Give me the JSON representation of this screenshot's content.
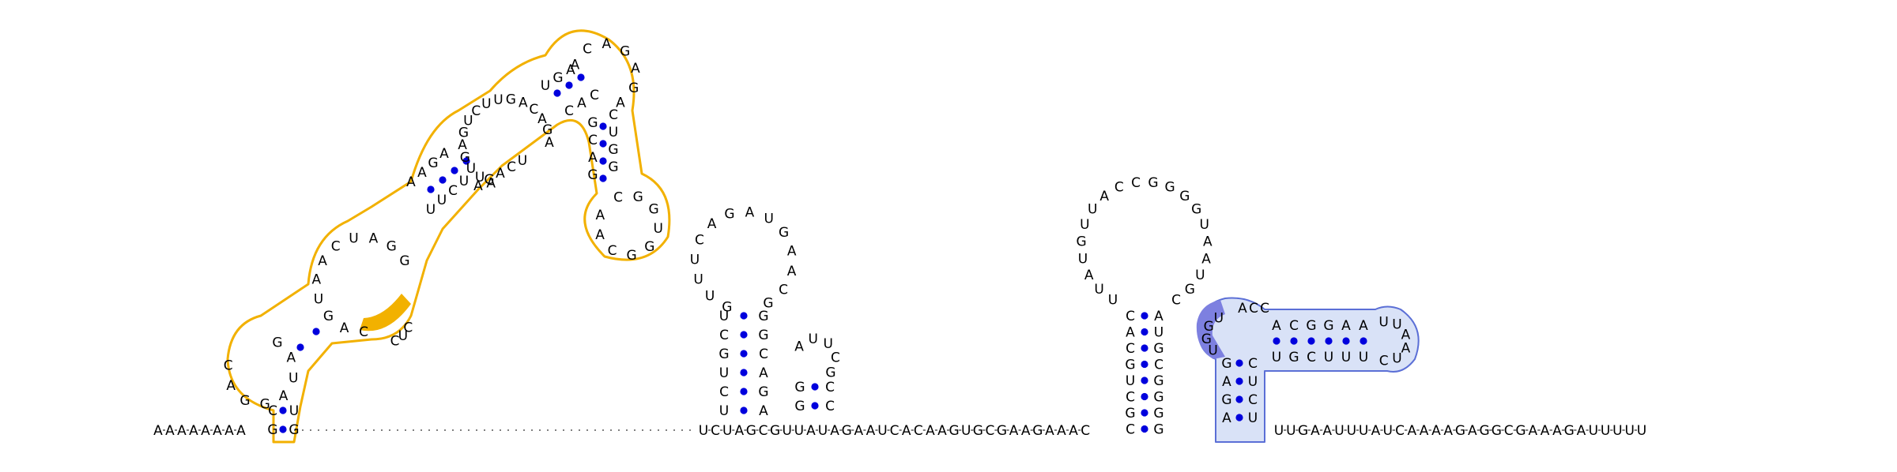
{
  "diagram": {
    "type": "rna-secondary-structure",
    "backbone_5prime_tail": "AAAAAAAA",
    "backbone_middle": "UCUAGCGUUAUAGAAUCACAAGUGCGAAGAAAC",
    "backbone_3prime_tail": "UUGAAUUUAUCAAAAGAGGCGAAAGAUUUUU",
    "highlight_colors": {
      "orange_outline": "#f2b100",
      "orange_fill": "#f2b100",
      "blue_outline": "#5b6fd6",
      "blue_fill": "#d9e2f7",
      "blue_dark": "#7d80e0",
      "base_pair_dot": "#0000dd"
    },
    "orange_hairpin": {
      "loop_1": [
        "G",
        "A",
        "U",
        "A",
        "G",
        "G",
        "A",
        "C"
      ],
      "stem_1_left": [
        "C",
        "G"
      ],
      "stem_1_right": [
        "U",
        "G"
      ],
      "loop_2": [
        "C",
        "A",
        "G",
        "U",
        "A",
        "A",
        "C",
        "U",
        "A",
        "G",
        "G"
      ],
      "stem_2_left": [
        "A",
        "A",
        "G",
        "A"
      ],
      "stem_2_right": [
        "U",
        "U",
        "C",
        "U"
      ],
      "loop_3": [
        "A",
        "U",
        "U",
        "G",
        "A",
        "G",
        "U",
        "C",
        "U",
        "U",
        "G",
        "A",
        "C",
        "A",
        "G",
        "A"
      ],
      "loop_3_bottom": [
        "A",
        "G",
        "A",
        "C",
        "U"
      ],
      "stem_3_left": [
        "U",
        "G",
        "A"
      ],
      "stem_3_right": [
        "C",
        "A",
        "C"
      ],
      "loop_4_top": [
        "A",
        "C",
        "A",
        "G",
        "A",
        "G",
        "A"
      ],
      "stem_4_left": [
        "G",
        "C",
        "A",
        "G"
      ],
      "stem_4_right": [
        "C",
        "U",
        "G",
        "G"
      ],
      "loop_5": [
        "C",
        "G",
        "G",
        "U",
        "G",
        "G",
        "C",
        "A",
        "A"
      ],
      "orange_highlight": [
        "C",
        "U",
        "C"
      ]
    },
    "hairpin_a": {
      "loop": [
        "G",
        "U",
        "U",
        "U",
        "C",
        "A",
        "G",
        "A",
        "U",
        "G",
        "A",
        "A",
        "C",
        "G"
      ],
      "stem_left": [
        "U",
        "C",
        "G",
        "U",
        "C",
        "U"
      ],
      "stem_right": [
        "G",
        "G",
        "C",
        "A",
        "G",
        "A"
      ]
    },
    "hairpin_b": {
      "loop": [
        "A",
        "U",
        "U",
        "C",
        "G"
      ],
      "stem_left": [
        "G",
        "G"
      ],
      "stem_right": [
        "C",
        "C"
      ]
    },
    "hairpin_c": {
      "loop": [
        "U",
        "U",
        "A",
        "U",
        "G",
        "U",
        "U",
        "A",
        "C",
        "C",
        "G",
        "G",
        "G",
        "G",
        "U",
        "A",
        "A",
        "U",
        "G",
        "C"
      ],
      "stem_left": [
        "C",
        "A",
        "C",
        "G",
        "U",
        "C",
        "G",
        "C"
      ],
      "stem_right": [
        "A",
        "U",
        "G",
        "C",
        "G",
        "G",
        "G",
        "G"
      ]
    },
    "blue_pseudoknot": {
      "dark_segment": [
        "U",
        "G",
        "G",
        "U"
      ],
      "left_column": [
        "G",
        "A",
        "G",
        "A"
      ],
      "right_column": [
        "C",
        "U",
        "C",
        "U"
      ],
      "top_loop": [
        "A",
        "C",
        "C"
      ],
      "arm_top": [
        "A",
        "C",
        "G",
        "G",
        "A",
        "A"
      ],
      "arm_bottom": [
        "U",
        "G",
        "C",
        "U",
        "U",
        "U"
      ],
      "arm_tip": [
        "U",
        "U",
        "A",
        "A",
        "U",
        "C"
      ]
    }
  }
}
